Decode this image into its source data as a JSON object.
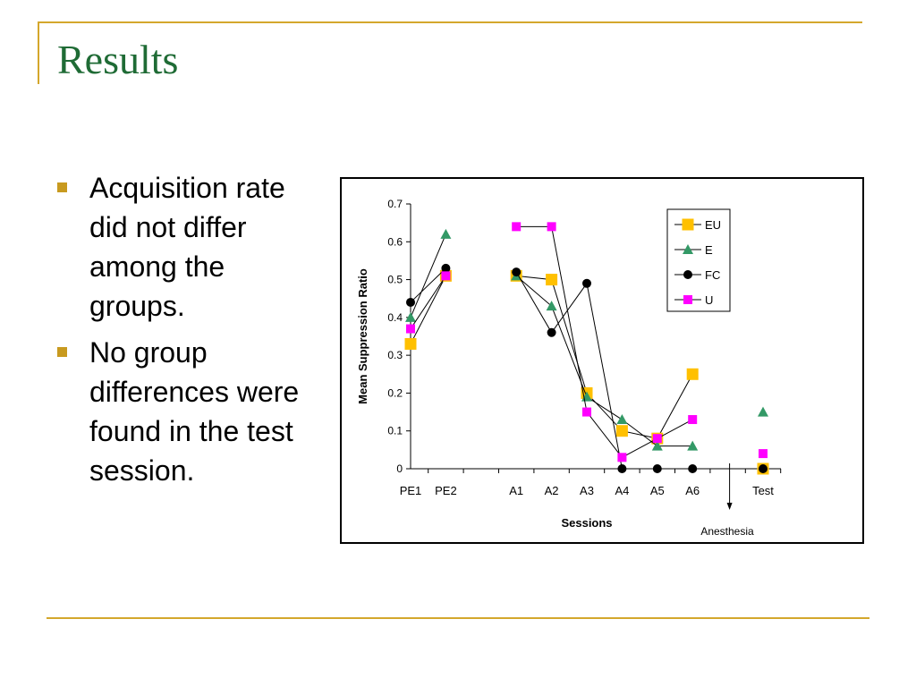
{
  "slide": {
    "title": "Results",
    "bullets": [
      "Acquisition rate did not differ among the groups.",
      "No group differences were found in the test session."
    ]
  },
  "colors": {
    "title": "#1f6b35",
    "frame": "#d4a72c",
    "bullet_marker": "#c89a1f",
    "EU": "#ffc000",
    "E": "#339966",
    "FC": "#000000",
    "U": "#ff00ff"
  },
  "chart_data": {
    "type": "line",
    "xlabel": "Sessions",
    "ylabel": "Mean Suppression Ratio",
    "ylim": [
      0,
      0.7
    ],
    "yticks": [
      0,
      0.1,
      0.2,
      0.3,
      0.4,
      0.5,
      0.6,
      0.7
    ],
    "ytick_labels": [
      "0",
      "0.1",
      "0.2",
      "0.3",
      "0.4",
      "0.5",
      "0.6",
      "0.7"
    ],
    "categories": [
      "PE1",
      "PE2",
      "",
      "A1",
      "A2",
      "A3",
      "A4",
      "A5",
      "A6",
      "",
      "Test"
    ],
    "grid": false,
    "legend": "top-right",
    "annotation": {
      "text": "Anesthesia",
      "at": "between A6 and Test"
    },
    "series": [
      {
        "name": "EU",
        "marker": "square",
        "color": "#ffc000",
        "values": [
          0.33,
          0.51,
          null,
          0.51,
          0.5,
          0.2,
          0.1,
          0.08,
          0.25,
          null,
          0.0
        ]
      },
      {
        "name": "E",
        "marker": "triangle",
        "color": "#339966",
        "values": [
          0.4,
          0.62,
          null,
          0.51,
          0.43,
          0.19,
          0.13,
          0.06,
          0.06,
          null,
          0.15
        ]
      },
      {
        "name": "FC",
        "marker": "circle",
        "color": "#000000",
        "values": [
          0.44,
          0.53,
          null,
          0.52,
          0.36,
          0.49,
          0.0,
          0.0,
          0.0,
          null,
          0.0
        ]
      },
      {
        "name": "U",
        "marker": "square",
        "color": "#ff00ff",
        "values": [
          0.37,
          0.51,
          null,
          0.64,
          0.64,
          0.15,
          0.03,
          0.08,
          0.13,
          null,
          0.04
        ]
      }
    ]
  }
}
